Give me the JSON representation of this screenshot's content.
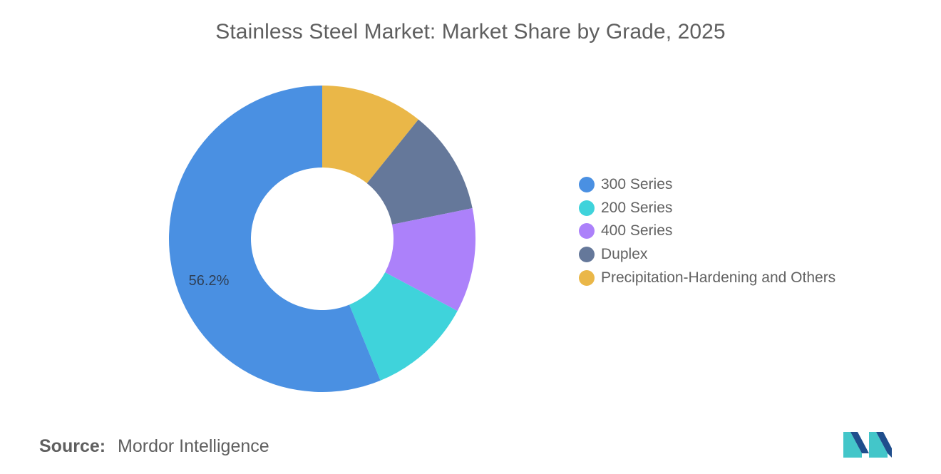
{
  "chart_data": {
    "type": "pie",
    "title": "Stainless Steel Market: Market Share by Grade, 2025",
    "series": [
      {
        "name": "300 Series",
        "value": 56.2,
        "color": "#4a90e2"
      },
      {
        "name": "200 Series",
        "value": 11.0,
        "color": "#3fd3db"
      },
      {
        "name": "400 Series",
        "value": 11.0,
        "color": "#ac81fa"
      },
      {
        "name": "Duplex",
        "value": 11.0,
        "color": "#65789a"
      },
      {
        "name": "Precipitation-Hardening and Others",
        "value": 10.8,
        "color": "#eab748"
      }
    ],
    "data_labels": [
      {
        "series": "300 Series",
        "text": "56.2%"
      }
    ],
    "donut": true,
    "legend_position": "right"
  },
  "source": {
    "label": "Source:",
    "text": "Mordor Intelligence"
  },
  "logo": {
    "icon": "mordor-intelligence-logo",
    "colors": [
      "#1f4e8c",
      "#43c6c9"
    ]
  }
}
